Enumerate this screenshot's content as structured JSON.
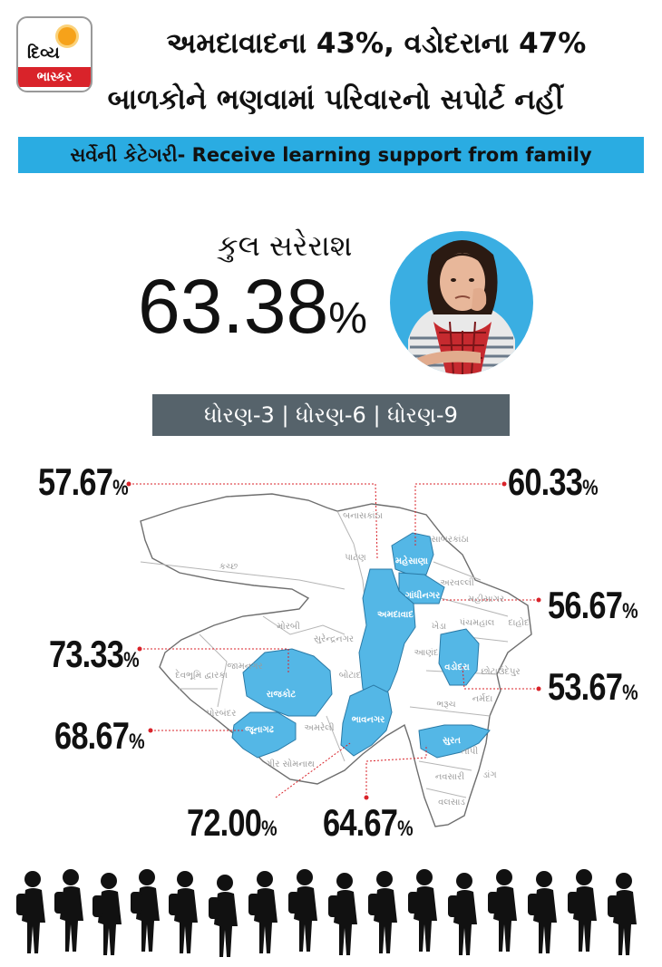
{
  "header": {
    "logo_top": "દિવ્ય",
    "logo_bottom": "ભાસ્કર",
    "headline_line1": "અમદાવાદના 43%, વડોદરાના 47%",
    "headline_line2": "બાળકોને ભણવામાં પરિવારનો સપોર્ટ નહીં"
  },
  "banner": "સર્વેની કેટેગરી- Receive learning support from family",
  "average": {
    "label": "કુલ સરેરાશ",
    "value": "63.38",
    "unit": "%"
  },
  "standards": "ધોરણ-3 | ધોરણ-6 | ધોરણ-9",
  "colors": {
    "accent": "#2aace2",
    "highlight": "#54b7e6",
    "bar": "#56636b",
    "leader": "#d9232a"
  },
  "highlighted_districts": [
    {
      "name": "મહેસાણા",
      "value": "60.33"
    },
    {
      "name": "ગાંધીનગર",
      "value": "56.67"
    },
    {
      "name": "અમદાવાદ",
      "value": "57.67"
    },
    {
      "name": "વડોદરા",
      "value": "53.67"
    },
    {
      "name": "રાજકોટ",
      "value": "73.33"
    },
    {
      "name": "જૂનાગઢ",
      "value": "68.67"
    },
    {
      "name": "ભાવનગર",
      "value": "72.00"
    },
    {
      "name": "સુરત",
      "value": "64.67"
    }
  ],
  "other_districts": [
    "બનાસકાંઠા",
    "સાબરકાંઠા",
    "પાટણ",
    "કચ્છ",
    "અરવલ્લી",
    "મહીસાગર",
    "પંચમહાલ",
    "દાહોદ",
    "ખેડા",
    "મોરબી",
    "સુરેન્દ્રનગર",
    "આણંદ",
    "છોટાઉદેપુર",
    "દેવભૂમિ દ્વારકા",
    "જામનગર",
    "બોટાદ",
    "નર્મદા",
    "ભરૂચ",
    "પોરબંદર",
    "અમરેલી",
    "ગીર સોમનાથ",
    "તાપી",
    "નવસારી",
    "ડાંગ",
    "વલસાડ"
  ],
  "value_unit": "%"
}
